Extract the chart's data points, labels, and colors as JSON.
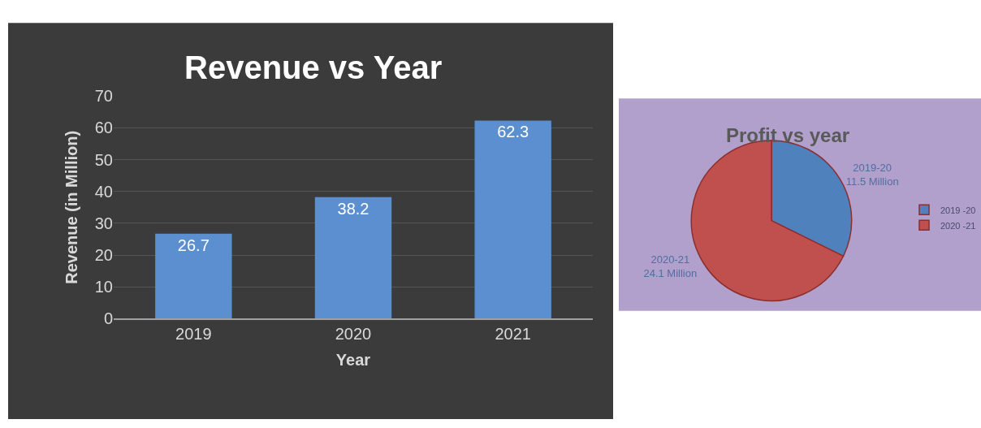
{
  "chart_data": [
    {
      "type": "bar",
      "title": "Revenue vs Year",
      "xlabel": "Year",
      "ylabel": "Revenue (in Million)",
      "categories": [
        "2019",
        "2020",
        "2021"
      ],
      "values": [
        26.7,
        38.2,
        62.3
      ],
      "color": "#5b8fd0",
      "ylim": [
        0,
        70
      ],
      "yticks": [
        0,
        10,
        20,
        30,
        40,
        50,
        60,
        70
      ],
      "grid": "y",
      "data_labels": true,
      "legend": false
    },
    {
      "type": "pie",
      "title": "Profit vs year",
      "categories": [
        "2019 -20",
        "2020 -21"
      ],
      "values": [
        11.5,
        24.1
      ],
      "colors": [
        "#4f81bd",
        "#c0504d"
      ],
      "value_labels": [
        "2019-20\n11.5 Million",
        "2020-21\n24.1 Million"
      ],
      "legend": "right"
    }
  ]
}
